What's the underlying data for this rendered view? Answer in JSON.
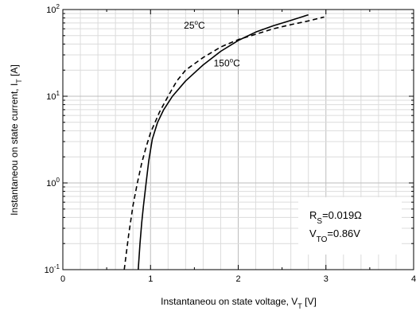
{
  "chart_data": {
    "type": "line",
    "title": "",
    "xlabel": {
      "main": "Instantaneou on state voltage, V",
      "sub": "T",
      "unit": " [V]"
    },
    "ylabel": {
      "main": "Instantaneou on state current, I",
      "sub": "T",
      "unit": " [A]"
    },
    "xlim": [
      0,
      4
    ],
    "ylim": [
      0.1,
      100
    ],
    "y_scale": "log",
    "grid": true,
    "x_ticks": [
      {
        "value": 0,
        "label": "0"
      },
      {
        "value": 1,
        "label": "1"
      },
      {
        "value": 2,
        "label": "2"
      },
      {
        "value": 3,
        "label": "3"
      },
      {
        "value": 4,
        "label": "4"
      }
    ],
    "y_ticks": [
      {
        "value": 0.1,
        "base": "10",
        "exp": "-1"
      },
      {
        "value": 1,
        "base": "10",
        "exp": "0"
      },
      {
        "value": 10,
        "base": "10",
        "exp": "1"
      },
      {
        "value": 100,
        "base": "10",
        "exp": "2"
      }
    ],
    "series": [
      {
        "name": "25°C",
        "style": "solid",
        "x": [
          0.86,
          0.88,
          0.9,
          0.92,
          0.95,
          0.98,
          1.02,
          1.08,
          1.15,
          1.25,
          1.4,
          1.6,
          1.8,
          2.0,
          2.2,
          2.4,
          2.6,
          2.8
        ],
        "y": [
          0.1,
          0.2,
          0.35,
          0.55,
          1.0,
          1.8,
          3.2,
          5.0,
          7.0,
          10.0,
          15.0,
          23.0,
          33.0,
          44.0,
          55.0,
          65.0,
          75.0,
          87.0
        ]
      },
      {
        "name": "150°C",
        "style": "dashed",
        "x": [
          0.7,
          0.75,
          0.8,
          0.85,
          0.9,
          0.95,
          1.0,
          1.1,
          1.2,
          1.3,
          1.4,
          1.6,
          1.8,
          2.0,
          2.2,
          2.4,
          2.6,
          2.8,
          2.98
        ],
        "y": [
          0.1,
          0.25,
          0.55,
          1.0,
          1.7,
          2.6,
          3.8,
          6.5,
          10.0,
          15.0,
          20.0,
          28.0,
          37.0,
          45.0,
          52.0,
          60.0,
          67.0,
          74.0,
          82.0
        ]
      }
    ],
    "annotations": [
      {
        "id": "label-25",
        "base": "25",
        "sup": "o",
        "tail": "C",
        "x": 1.38,
        "y": 60
      },
      {
        "id": "label-150",
        "base": "150",
        "sup": "o",
        "tail": "C",
        "x": 1.72,
        "y": 22
      }
    ],
    "legend_box": {
      "placement": "bottom-right",
      "line1": {
        "main": "R",
        "sub": "S",
        "tail": "=0.019Ω"
      },
      "line2": {
        "main": "V",
        "sub": "TO",
        "tail": "=0.86V"
      }
    }
  }
}
